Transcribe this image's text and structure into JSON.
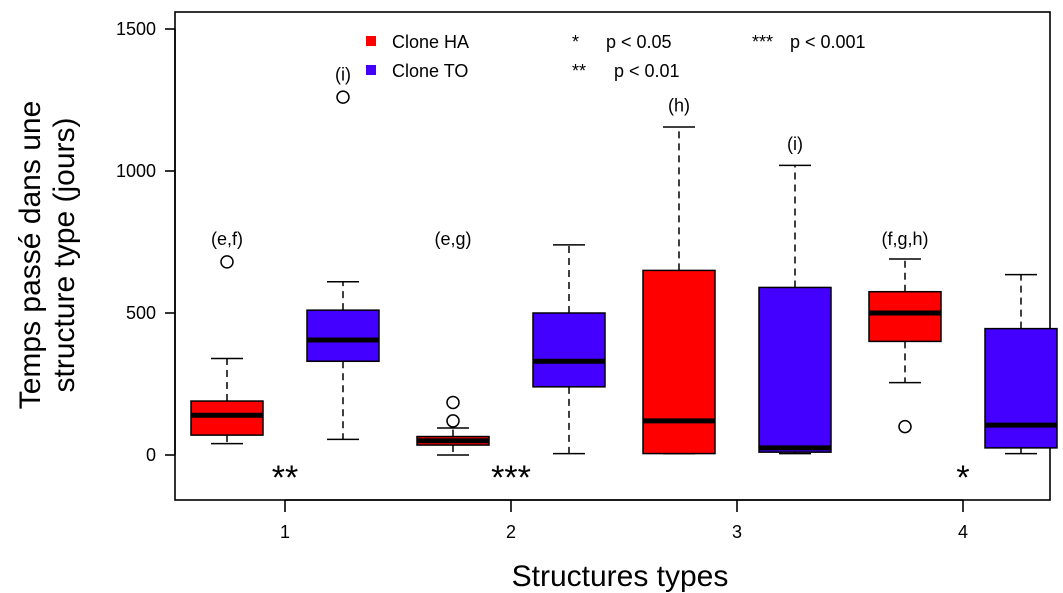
{
  "chart_data": {
    "type": "boxplot",
    "title": "",
    "xlabel": "Structures types",
    "ylabel_line1": "Temps passé dans une",
    "ylabel_line2": "structure type (jours)",
    "ylim": [
      -170,
      1560
    ],
    "yticks": [
      0,
      500,
      1000,
      1500
    ],
    "categories": [
      "1",
      "2",
      "3",
      "4"
    ],
    "series": [
      {
        "name": "Clone HA",
        "color": "#ff0000"
      },
      {
        "name": "Clone TO",
        "color": "#4400ff"
      }
    ],
    "boxes": [
      {
        "category": "1",
        "series": 0,
        "whisker_low": 40,
        "q1": 70,
        "median": 140,
        "q3": 190,
        "whisker_high": 340,
        "outliers": [
          680
        ]
      },
      {
        "category": "1",
        "series": 1,
        "whisker_low": 55,
        "q1": 330,
        "median": 405,
        "q3": 510,
        "whisker_high": 610,
        "outliers": [
          1260
        ]
      },
      {
        "category": "2",
        "series": 0,
        "whisker_low": 0,
        "q1": 35,
        "median": 50,
        "q3": 65,
        "whisker_high": 95,
        "outliers": [
          120,
          185
        ]
      },
      {
        "category": "2",
        "series": 1,
        "whisker_low": 5,
        "q1": 240,
        "median": 330,
        "q3": 500,
        "whisker_high": 740,
        "outliers": []
      },
      {
        "category": "3",
        "series": 0,
        "whisker_low": 5,
        "q1": 5,
        "median": 120,
        "q3": 650,
        "whisker_high": 1155,
        "outliers": []
      },
      {
        "category": "3",
        "series": 1,
        "whisker_low": 5,
        "q1": 10,
        "median": 25,
        "q3": 590,
        "whisker_high": 1020,
        "outliers": []
      },
      {
        "category": "4",
        "series": 0,
        "whisker_low": 255,
        "q1": 400,
        "median": 500,
        "q3": 575,
        "whisker_high": 690,
        "outliers": [
          100
        ]
      },
      {
        "category": "4",
        "series": 1,
        "whisker_low": 5,
        "q1": 25,
        "median": 105,
        "q3": 445,
        "whisker_high": 635,
        "outliers": []
      }
    ],
    "group_labels": [
      {
        "category": "1",
        "series": 0,
        "text": "(e,f)",
        "y": 760
      },
      {
        "category": "1",
        "series": 1,
        "text": "(i)",
        "y": 1340
      },
      {
        "category": "2",
        "series": 0,
        "text": "(e,g)",
        "y": 760
      },
      {
        "category": "3",
        "series": 0,
        "text": "(h)",
        "y": 1230
      },
      {
        "category": "3",
        "series": 1,
        "text": "(i)",
        "y": 1095
      },
      {
        "category": "4",
        "series": 0,
        "text": "(f,g,h)",
        "y": 760
      }
    ],
    "significance": [
      {
        "category": "1",
        "text": "**"
      },
      {
        "category": "2",
        "text": "***"
      },
      {
        "category": "4",
        "text": "*"
      }
    ],
    "sig_legend": [
      {
        "symbol": "*",
        "label": "p < 0.05"
      },
      {
        "symbol": "**",
        "label": "p < 0.01"
      },
      {
        "symbol": "***",
        "label": "p < 0.001"
      }
    ]
  }
}
